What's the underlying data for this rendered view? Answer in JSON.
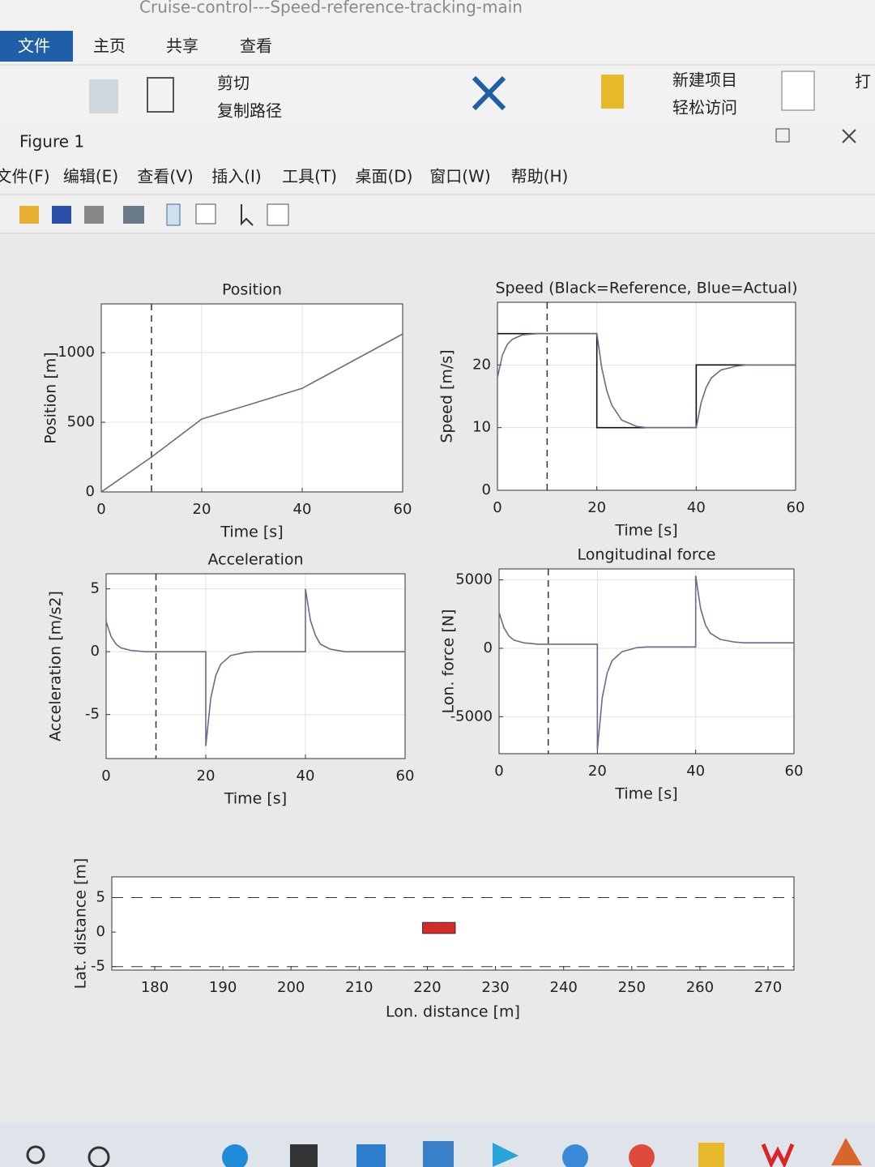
{
  "explorer": {
    "title": "Cruise-control---Speed-reference-tracking-main",
    "tabs": [
      "文件",
      "主页",
      "共享",
      "查看"
    ],
    "buttons": [
      "剪切",
      "复制路径",
      "新建项目",
      "轻松访问",
      "打"
    ]
  },
  "figure": {
    "title": "Figure 1",
    "menu": [
      "文件(F)",
      "编辑(E)",
      "查看(V)",
      "插入(I)",
      "工具(T)",
      "桌面(D)",
      "窗口(W)",
      "帮助(H)"
    ]
  },
  "chart_data": [
    {
      "type": "line",
      "title": "Position",
      "xlabel": "Time [s]",
      "ylabel": "Position [m]",
      "xlim": [
        0,
        60
      ],
      "ylim": [
        0,
        1350
      ],
      "xticks": [
        0,
        20,
        40,
        60
      ],
      "yticks": [
        0,
        500,
        1000
      ],
      "grid": true,
      "time_marker": 10,
      "series": [
        {
          "color": "#6e6e78",
          "x": [
            0,
            10,
            20,
            30,
            40,
            50,
            60
          ],
          "values": [
            0,
            250,
            523,
            633,
            744,
            939,
            1134
          ]
        }
      ]
    },
    {
      "type": "line",
      "title": "Speed (Black=Reference, Blue=Actual)",
      "xlabel": "Time [s]",
      "ylabel": "Speed [m/s]",
      "xlim": [
        0,
        60
      ],
      "ylim": [
        0,
        30
      ],
      "xticks": [
        0,
        20,
        40,
        60
      ],
      "yticks": [
        0,
        10,
        20
      ],
      "grid": true,
      "time_marker": 10,
      "series": [
        {
          "color": "#111111",
          "x": [
            0,
            20,
            20,
            40,
            40,
            60
          ],
          "values": [
            25,
            25,
            10,
            10,
            20,
            20
          ]
        },
        {
          "color": "#6a6a8c",
          "x": [
            0,
            1,
            2,
            3,
            5,
            8,
            10,
            20,
            21,
            22,
            23,
            25,
            28,
            30,
            40,
            41,
            42,
            43,
            45,
            48,
            50,
            60
          ],
          "values": [
            18,
            21.6,
            23.3,
            24.1,
            24.8,
            25,
            25,
            25,
            19.5,
            15.9,
            13.6,
            11.2,
            10.2,
            10,
            10,
            14,
            16.4,
            17.9,
            19.2,
            19.8,
            20,
            20
          ]
        }
      ]
    },
    {
      "type": "line",
      "title": "Acceleration",
      "xlabel": "Time [s]",
      "ylabel": "Acceleration [m/s2]",
      "xlim": [
        0,
        60
      ],
      "ylim": [
        -8.5,
        6.2
      ],
      "xticks": [
        0,
        20,
        40,
        60
      ],
      "yticks": [
        -5,
        0,
        5
      ],
      "grid": true,
      "time_marker": 10,
      "series": [
        {
          "color": "#6a6a8c",
          "x": [
            0,
            1,
            2,
            3,
            5,
            8,
            10,
            20,
            20,
            21,
            22,
            23,
            25,
            28,
            30,
            40,
            40,
            41,
            42,
            43,
            45,
            48,
            50,
            60
          ],
          "values": [
            2.4,
            1.2,
            0.6,
            0.3,
            0.1,
            0,
            0,
            0,
            -7.5,
            -3.7,
            -1.9,
            -1,
            -0.3,
            -0.05,
            0,
            0,
            5,
            2.5,
            1.3,
            0.6,
            0.2,
            0,
            0,
            0
          ]
        }
      ]
    },
    {
      "type": "line",
      "title": "Longitudinal force",
      "xlabel": "Time [s]",
      "ylabel": "Lon. force [N]",
      "xlim": [
        0,
        60
      ],
      "ylim": [
        -7700,
        5800
      ],
      "xticks": [
        0,
        20,
        40,
        60
      ],
      "yticks": [
        -5000,
        0,
        5000
      ],
      "grid": true,
      "time_marker": 10,
      "series": [
        {
          "color": "#6a6a8c",
          "x": [
            0,
            1,
            2,
            3,
            5,
            8,
            10,
            20,
            20,
            21,
            22,
            23,
            25,
            28,
            30,
            40,
            40,
            41,
            42,
            43,
            45,
            48,
            50,
            60
          ],
          "values": [
            2600,
            1500,
            900,
            600,
            400,
            300,
            300,
            300,
            -7400,
            -3600,
            -1800,
            -900,
            -250,
            50,
            100,
            100,
            5300,
            2900,
            1700,
            1100,
            650,
            450,
            400,
            400
          ]
        }
      ]
    },
    {
      "type": "road",
      "xlabel": "Lon. distance [m]",
      "ylabel": "Lat. distance [m]",
      "xlim": [
        173.7,
        273.8
      ],
      "ylim": [
        -5.5,
        8
      ],
      "xticks": [
        180,
        190,
        200,
        210,
        220,
        230,
        240,
        250,
        260,
        270
      ],
      "yticks": [
        -5,
        0,
        5
      ],
      "grid": false,
      "lane_lines": [
        -5,
        5
      ],
      "car": {
        "x": [
          219.3,
          224.1
        ],
        "y": [
          -0.2,
          1.4
        ],
        "color": "#d42a2a"
      }
    }
  ]
}
